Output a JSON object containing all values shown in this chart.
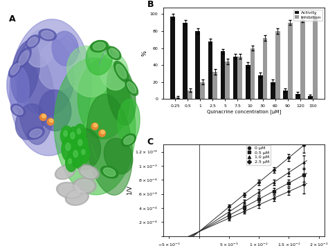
{
  "panel_B": {
    "concentrations": [
      "0.25",
      "0.5",
      "1",
      "2.5",
      "5",
      "7.5",
      "10",
      "30",
      "60",
      "90",
      "120",
      "150"
    ],
    "activity": [
      97,
      90,
      80,
      68,
      56,
      50,
      40,
      28,
      20,
      10,
      6,
      3
    ],
    "inhibition": [
      2,
      10,
      20,
      32,
      44,
      50,
      60,
      72,
      80,
      90,
      94,
      97
    ],
    "activity_errors": [
      3,
      3,
      3,
      3,
      3,
      3,
      3,
      3,
      3,
      2,
      2,
      2
    ],
    "inhibition_errors": [
      1,
      2,
      3,
      3,
      3,
      3,
      3,
      3,
      3,
      3,
      3,
      3
    ],
    "ylabel": "%",
    "xlabel": "Quinacrine concentration [μM]",
    "ylim": [
      0,
      108
    ],
    "bar_width": 0.38,
    "activity_color": "#111111",
    "inhibition_color": "#999999"
  },
  "panel_C": {
    "x_data": [
      0.005,
      0.0075,
      0.01,
      0.0125,
      0.015,
      0.0175
    ],
    "lines": [
      {
        "label": "0 μM",
        "slope": 0.038,
        "intercept": 6.5e-05,
        "yerrors": [
          3e-05,
          3e-05,
          4e-05,
          4e-05,
          5e-05,
          0.00012
        ],
        "marker": "o"
      },
      {
        "label": "0.5 μM",
        "slope": 0.046,
        "intercept": 6.5e-05,
        "yerrors": [
          3e-05,
          3e-05,
          4e-05,
          4e-05,
          5e-05,
          0.0001
        ],
        "marker": "s"
      },
      {
        "label": "1.0 μM",
        "slope": 0.056,
        "intercept": 6.5e-05,
        "yerrors": [
          3e-05,
          3e-05,
          4e-05,
          4e-05,
          5e-05,
          0.0001
        ],
        "marker": "^"
      },
      {
        "label": "2.5 μM",
        "slope": 0.07,
        "intercept": 6.5e-05,
        "yerrors": [
          3e-05,
          3e-05,
          4e-05,
          4e-05,
          5e-05,
          0.0001
        ],
        "marker": "D"
      }
    ],
    "xlim": [
      -0.006,
      0.021
    ],
    "ylim": [
      0,
      0.0013
    ],
    "xlabel": "1/[S]",
    "ylabel": "1/V",
    "x_line_start": -0.005
  }
}
